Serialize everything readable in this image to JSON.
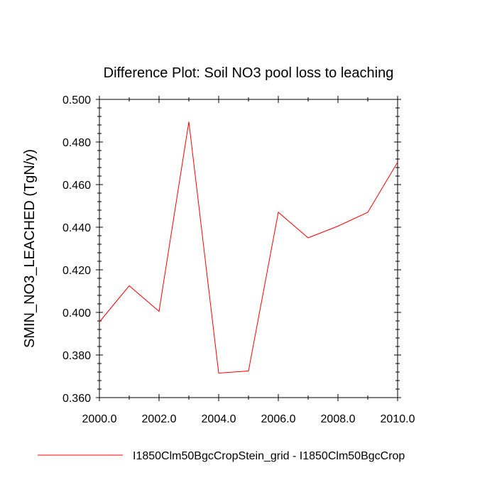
{
  "chart_data": {
    "type": "line",
    "title": "Difference Plot: Soil NO3 pool loss to leaching",
    "xlabel": "",
    "ylabel": "SMIN_NO3_LEACHED  (TgN/y)",
    "xlim": [
      2000,
      2010
    ],
    "ylim": [
      0.36,
      0.5
    ],
    "x_ticks": [
      2000,
      2002,
      2004,
      2006,
      2008,
      2010
    ],
    "x_tick_labels": [
      "2000.0",
      "2002.0",
      "2004.0",
      "2006.0",
      "2008.0",
      "2010.0"
    ],
    "y_ticks": [
      0.36,
      0.38,
      0.4,
      0.42,
      0.44,
      0.46,
      0.48,
      0.5
    ],
    "y_tick_labels": [
      "0.360",
      "0.380",
      "0.400",
      "0.420",
      "0.440",
      "0.460",
      "0.480",
      "0.500"
    ],
    "grid": false,
    "legend_position": "bottom",
    "series": [
      {
        "name": "I1850Clm50BgcCropStein_grid - I1850Clm50BgcCrop",
        "color": "#ff0000",
        "x": [
          2000,
          2001,
          2002,
          2003,
          2004,
          2005,
          2006,
          2007,
          2008,
          2009,
          2010
        ],
        "y": [
          0.3955,
          0.4125,
          0.4005,
          0.4895,
          0.3715,
          0.3725,
          0.447,
          0.435,
          0.4405,
          0.447,
          0.4705
        ]
      }
    ]
  }
}
